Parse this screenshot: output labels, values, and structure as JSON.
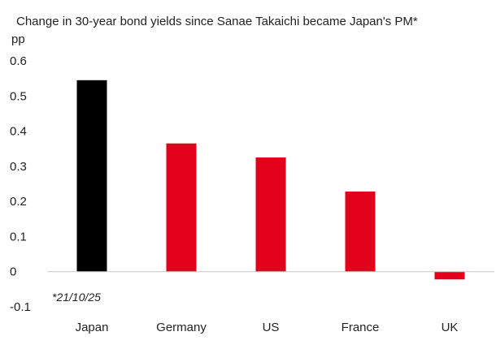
{
  "chart_data": {
    "type": "bar",
    "title": "Change in 30-year bond yields since Sanae Takaichi became Japan's PM*",
    "ylabel": "pp",
    "xlabel": "",
    "categories": [
      "Japan",
      "Germany",
      "US",
      "France",
      "UK"
    ],
    "values": [
      0.545,
      0.365,
      0.325,
      0.228,
      -0.022
    ],
    "colors": [
      "#000000",
      "#e3001b",
      "#e3001b",
      "#e3001b",
      "#e3001b"
    ],
    "ylim": [
      -0.1,
      0.6
    ],
    "yticks": [
      "-0.1",
      "0",
      "0.1",
      "0.2",
      "0.3",
      "0.4",
      "0.5",
      "0.6"
    ],
    "yticks_values": [
      -0.1,
      0,
      0.1,
      0.2,
      0.3,
      0.4,
      0.5,
      0.6
    ],
    "note": "*21/10/25",
    "grid": false,
    "legend": "none"
  }
}
